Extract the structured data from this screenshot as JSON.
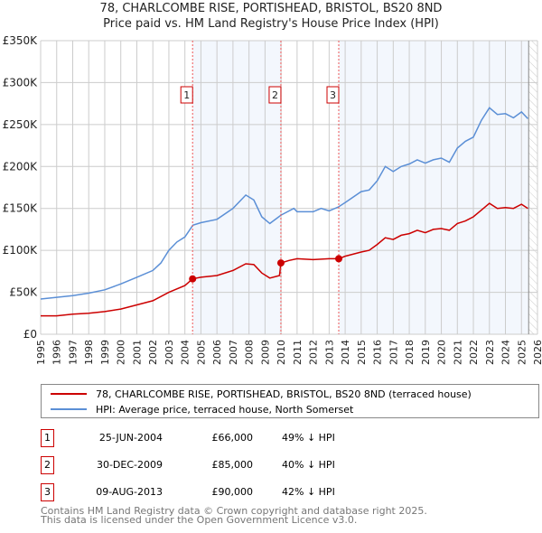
{
  "chart_data": {
    "type": "line",
    "title": "78, CHARLCOMBE RISE, PORTISHEAD, BRISTOL, BS20 8ND",
    "subtitle": "Price paid vs. HM Land Registry's House Price Index (HPI)",
    "xlim": [
      1995,
      2026
    ],
    "ylim": [
      0,
      350000
    ],
    "yticks": [
      0,
      50000,
      100000,
      150000,
      200000,
      250000,
      300000,
      350000
    ],
    "ytick_labels": [
      "£0",
      "£50K",
      "£100K",
      "£150K",
      "£200K",
      "£250K",
      "£300K",
      "£350K"
    ],
    "xticks": [
      1995,
      1996,
      1997,
      1998,
      1999,
      2000,
      2001,
      2002,
      2003,
      2004,
      2005,
      2006,
      2007,
      2008,
      2009,
      2010,
      2011,
      2012,
      2013,
      2014,
      2015,
      2016,
      2017,
      2018,
      2019,
      2020,
      2021,
      2022,
      2023,
      2024,
      2025,
      2026
    ],
    "grid": true,
    "data_end": 2025.45,
    "series": [
      {
        "name": "78, CHARLCOMBE RISE, PORTISHEAD, BRISTOL, BS20 8ND (terraced house)",
        "color": "#cc0000",
        "x": [
          1995,
          1996,
          1997,
          1998,
          1999,
          2000,
          2001,
          2002,
          2003,
          2004,
          2004.48,
          2005,
          2006,
          2007,
          2007.8,
          2008.3,
          2008.8,
          2009.3,
          2009.9,
          2009.99,
          2010.5,
          2011,
          2012,
          2013,
          2013.6,
          2014,
          2015,
          2015.5,
          2016,
          2016.5,
          2017,
          2017.5,
          2018,
          2018.5,
          2019,
          2019.5,
          2020,
          2020.5,
          2021,
          2021.5,
          2022,
          2022.5,
          2023,
          2023.5,
          2024,
          2024.5,
          2025,
          2025.4
        ],
        "y": [
          22000,
          22000,
          24000,
          25000,
          27000,
          30000,
          35000,
          40000,
          50000,
          58000,
          66000,
          68000,
          70000,
          76000,
          84000,
          83000,
          73000,
          67000,
          70000,
          85000,
          88000,
          90000,
          89000,
          90000,
          90000,
          93000,
          98000,
          100000,
          107000,
          115000,
          113000,
          118000,
          120000,
          124000,
          121000,
          125000,
          126000,
          124000,
          132000,
          135000,
          140000,
          148000,
          156000,
          150000,
          151000,
          150000,
          155000,
          150000
        ]
      },
      {
        "name": "HPI: Average price, terraced house, North Somerset",
        "color": "#5b8fd6",
        "x": [
          1995,
          1996,
          1997,
          1998,
          1999,
          2000,
          2001,
          2002,
          2002.5,
          2003,
          2003.5,
          2004,
          2004.5,
          2005,
          2006,
          2007,
          2007.8,
          2008.3,
          2008.8,
          2009.3,
          2010,
          2010.8,
          2011,
          2012,
          2012.5,
          2013,
          2013.6,
          2014,
          2015,
          2015.5,
          2016,
          2016.5,
          2017,
          2017.5,
          2018,
          2018.5,
          2019,
          2019.5,
          2020,
          2020.5,
          2021,
          2021.5,
          2022,
          2022.5,
          2023,
          2023.5,
          2024,
          2024.5,
          2025,
          2025.4
        ],
        "y": [
          42000,
          44000,
          46000,
          49000,
          53000,
          60000,
          68000,
          76000,
          85000,
          100000,
          110000,
          116000,
          130000,
          133000,
          137000,
          150000,
          166000,
          160000,
          140000,
          132000,
          142000,
          150000,
          146000,
          146000,
          150000,
          147000,
          152000,
          157000,
          170000,
          172000,
          183000,
          200000,
          194000,
          200000,
          203000,
          208000,
          204000,
          208000,
          210000,
          205000,
          222000,
          230000,
          235000,
          255000,
          270000,
          262000,
          263000,
          258000,
          265000,
          257000
        ]
      }
    ],
    "sales": [
      {
        "id": "1",
        "x": 2004.48,
        "price": 66000
      },
      {
        "id": "2",
        "x": 2009.99,
        "price": 85000
      },
      {
        "id": "3",
        "x": 2013.6,
        "price": 90000
      }
    ]
  },
  "legend": [
    "78, CHARLCOMBE RISE, PORTISHEAD, BRISTOL, BS20 8ND (terraced house)",
    "HPI: Average price, terraced house, North Somerset"
  ],
  "table": [
    {
      "id": "1",
      "date": "25-JUN-2004",
      "price": "£66,000",
      "hpi": "49% ↓ HPI"
    },
    {
      "id": "2",
      "date": "30-DEC-2009",
      "price": "£85,000",
      "hpi": "40% ↓ HPI"
    },
    {
      "id": "3",
      "date": "09-AUG-2013",
      "price": "£90,000",
      "hpi": "42% ↓ HPI"
    }
  ],
  "footer": [
    "Contains HM Land Registry data © Crown copyright and database right 2025.",
    "This data is licensed under the Open Government Licence v3.0."
  ]
}
